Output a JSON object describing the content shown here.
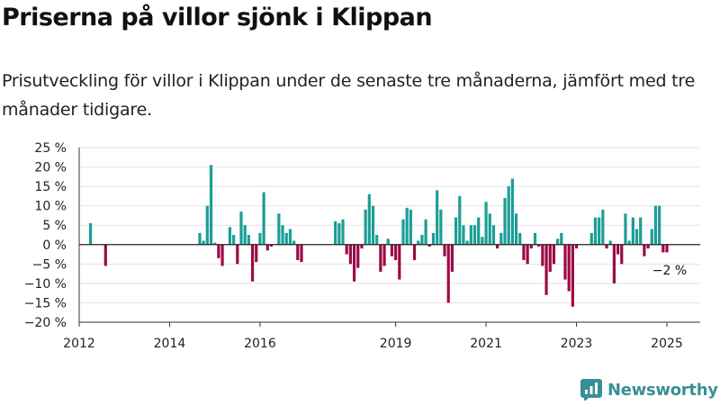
{
  "title": "Priserna på villor sjönk i Klippan",
  "subtitle": "Prisutveckling för villor i Klippan under de senaste tre månaderna, jämfört med tre månader tidigare.",
  "brand": "Newsworthy",
  "colors": {
    "positive": "#1b9e96",
    "negative": "#9c0a45",
    "brand": "#3a8f96",
    "grid": "#e3e3e3"
  },
  "chart_data": {
    "type": "bar",
    "y_unit": "%",
    "ylim": [
      -20,
      25
    ],
    "y_ticks": [
      25,
      20,
      15,
      10,
      5,
      0,
      -5,
      -10,
      -15,
      -20
    ],
    "y_tick_labels": [
      "25 %",
      "20 %",
      "15 %",
      "10 %",
      "5 %",
      "0 %",
      "−5 %",
      "−10 %",
      "−15 %",
      "−20 %"
    ],
    "x_ticks": [
      {
        "label": "2012",
        "x": "2012-01"
      },
      {
        "label": "2014",
        "x": "2014-01"
      },
      {
        "label": "2016",
        "x": "2016-01"
      },
      {
        "label": "2019",
        "x": "2019-01"
      },
      {
        "label": "2021",
        "x": "2021-01"
      },
      {
        "label": "2023",
        "x": "2023-01"
      },
      {
        "label": "2025",
        "x": "2025-01"
      }
    ],
    "grid": true,
    "annotation": {
      "text": "−2 %",
      "x": "2025-01",
      "value": -2
    },
    "series": [
      {
        "data": [
          [
            "2012-04",
            5.5
          ],
          [
            "2012-08",
            -5.5
          ],
          [
            "2014-09",
            3
          ],
          [
            "2014-10",
            1
          ],
          [
            "2014-11",
            10
          ],
          [
            "2014-12",
            20.5
          ],
          [
            "2015-01",
            0.5
          ],
          [
            "2015-02",
            -3.5
          ],
          [
            "2015-03",
            -5.5
          ],
          [
            "2015-05",
            4.5
          ],
          [
            "2015-06",
            2.5
          ],
          [
            "2015-07",
            -5
          ],
          [
            "2015-08",
            8.5
          ],
          [
            "2015-09",
            5
          ],
          [
            "2015-10",
            2.5
          ],
          [
            "2015-11",
            -9.5
          ],
          [
            "2015-12",
            -4.5
          ],
          [
            "2016-01",
            3
          ],
          [
            "2016-02",
            13.5
          ],
          [
            "2016-03",
            -1.5
          ],
          [
            "2016-04",
            -0.5
          ],
          [
            "2016-06",
            8
          ],
          [
            "2016-07",
            5
          ],
          [
            "2016-08",
            3
          ],
          [
            "2016-09",
            4
          ],
          [
            "2016-10",
            1
          ],
          [
            "2016-11",
            -4
          ],
          [
            "2016-12",
            -4.5
          ],
          [
            "2017-09",
            6
          ],
          [
            "2017-10",
            5.5
          ],
          [
            "2017-11",
            6.5
          ],
          [
            "2017-12",
            -2.5
          ],
          [
            "2018-01",
            -5
          ],
          [
            "2018-02",
            -9.5
          ],
          [
            "2018-03",
            -6
          ],
          [
            "2018-04",
            -1
          ],
          [
            "2018-05",
            9
          ],
          [
            "2018-06",
            13
          ],
          [
            "2018-07",
            10
          ],
          [
            "2018-08",
            2.5
          ],
          [
            "2018-09",
            -7
          ],
          [
            "2018-10",
            -5.5
          ],
          [
            "2018-11",
            1.5
          ],
          [
            "2018-12",
            -3
          ],
          [
            "2019-01",
            -4
          ],
          [
            "2019-02",
            -9
          ],
          [
            "2019-03",
            6.5
          ],
          [
            "2019-04",
            9.5
          ],
          [
            "2019-05",
            9
          ],
          [
            "2019-06",
            -4
          ],
          [
            "2019-07",
            1
          ],
          [
            "2019-08",
            2.5
          ],
          [
            "2019-09",
            6.5
          ],
          [
            "2019-10",
            -0.5
          ],
          [
            "2019-11",
            3
          ],
          [
            "2019-12",
            14
          ],
          [
            "2020-01",
            9
          ],
          [
            "2020-02",
            -3
          ],
          [
            "2020-03",
            -15
          ],
          [
            "2020-04",
            -7
          ],
          [
            "2020-05",
            7
          ],
          [
            "2020-06",
            12.5
          ],
          [
            "2020-07",
            5
          ],
          [
            "2020-08",
            1
          ],
          [
            "2020-09",
            5
          ],
          [
            "2020-10",
            5
          ],
          [
            "2020-11",
            7
          ],
          [
            "2020-12",
            2
          ],
          [
            "2021-01",
            11
          ],
          [
            "2021-02",
            8
          ],
          [
            "2021-03",
            5
          ],
          [
            "2021-04",
            -1
          ],
          [
            "2021-05",
            3
          ],
          [
            "2021-06",
            12
          ],
          [
            "2021-07",
            15
          ],
          [
            "2021-08",
            17
          ],
          [
            "2021-09",
            8
          ],
          [
            "2021-10",
            3
          ],
          [
            "2021-11",
            -4
          ],
          [
            "2021-12",
            -5
          ],
          [
            "2022-01",
            -1
          ],
          [
            "2022-02",
            3
          ],
          [
            "2022-03",
            -0.5
          ],
          [
            "2022-04",
            -5.5
          ],
          [
            "2022-05",
            -13
          ],
          [
            "2022-06",
            -7
          ],
          [
            "2022-07",
            -5
          ],
          [
            "2022-08",
            1.5
          ],
          [
            "2022-09",
            3
          ],
          [
            "2022-10",
            -9
          ],
          [
            "2022-11",
            -12
          ],
          [
            "2022-12",
            -16
          ],
          [
            "2023-01",
            -1
          ],
          [
            "2023-05",
            3
          ],
          [
            "2023-06",
            7
          ],
          [
            "2023-07",
            7
          ],
          [
            "2023-08",
            9
          ],
          [
            "2023-09",
            -1
          ],
          [
            "2023-10",
            1
          ],
          [
            "2023-11",
            -10
          ],
          [
            "2023-12",
            -2.5
          ],
          [
            "2024-01",
            -5
          ],
          [
            "2024-02",
            8
          ],
          [
            "2024-03",
            1
          ],
          [
            "2024-04",
            7
          ],
          [
            "2024-05",
            4
          ],
          [
            "2024-06",
            7
          ],
          [
            "2024-07",
            -3
          ],
          [
            "2024-08",
            -1
          ],
          [
            "2024-09",
            4
          ],
          [
            "2024-10",
            10
          ],
          [
            "2024-11",
            10
          ],
          [
            "2024-12",
            -2
          ],
          [
            "2025-01",
            -2
          ]
        ]
      }
    ]
  }
}
